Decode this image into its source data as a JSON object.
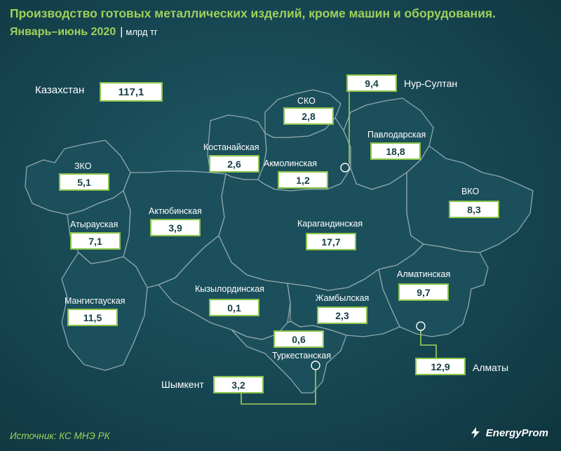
{
  "header": {
    "title": "Производство готовых металлических изделий, кроме машин и оборудования.",
    "period": "Январь–июнь 2020",
    "separator": "|",
    "unit": "млрд тг"
  },
  "total": {
    "label": "Казахстан",
    "value": "117,1"
  },
  "regions": {
    "zko": {
      "label": "ЗКО",
      "value": "5,1"
    },
    "atyrau": {
      "label": "Атырауская",
      "value": "7,1"
    },
    "mangystau": {
      "label": "Мангистауская",
      "value": "11,5"
    },
    "aktobe": {
      "label": "Актюбинская",
      "value": "3,9"
    },
    "kostanay": {
      "label": "Костанайская",
      "value": "2,6"
    },
    "sko": {
      "label": "СКО",
      "value": "2,8"
    },
    "akmola": {
      "label": "Акмолинская",
      "value": "1,2"
    },
    "pavlodar": {
      "label": "Павлодарская",
      "value": "18,8"
    },
    "vko": {
      "label": "ВКО",
      "value": "8,3"
    },
    "karaganda": {
      "label": "Карагандинская",
      "value": "17,7"
    },
    "kyzylorda": {
      "label": "Кызылординская",
      "value": "0,1"
    },
    "zhambyl": {
      "label": "Жамбылская",
      "value": "2,3"
    },
    "almaty_obl": {
      "label": "Алматинская",
      "value": "9,7"
    },
    "turkestan": {
      "label": "Туркестанская",
      "value": "0,6"
    }
  },
  "cities": {
    "nur_sultan": {
      "label": "Нур-Султан",
      "value": "9,4"
    },
    "almaty": {
      "label": "Алматы",
      "value": "12,9"
    },
    "shymkent": {
      "label": "Шымкент",
      "value": "3,2"
    }
  },
  "colors": {
    "accent": "#9fd15a",
    "box_border": "#8bc34a",
    "background": "#164652"
  },
  "footer": {
    "source": "Источник: КС МНЭ РК",
    "logo": "EnergyProm"
  }
}
